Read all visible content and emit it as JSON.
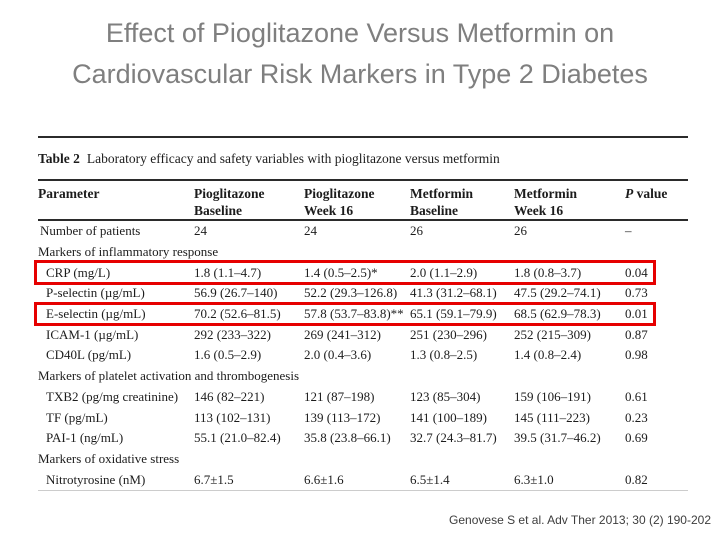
{
  "title": {
    "line1": "Effect of Pioglitazone Versus Metformin on",
    "line2": "Cardiovascular Risk Markers in Type 2 Diabetes"
  },
  "colors": {
    "title_text": "#7f7f7f",
    "highlight_box": "#e60000",
    "table_text": "#1c1c1c"
  },
  "table": {
    "caption_label": "Table 2",
    "caption_text": "Laboratory efficacy and safety variables with pioglitazone versus metformin",
    "header": [
      {
        "line1": "Parameter",
        "line2": ""
      },
      {
        "line1": "Pioglitazone",
        "line2": "Baseline"
      },
      {
        "line1": "Pioglitazone",
        "line2": "Week 16"
      },
      {
        "line1": "Metformin",
        "line2": "Baseline"
      },
      {
        "line1": "Metformin",
        "line2": "Week 16"
      },
      {
        "line1": "P value",
        "line2": ""
      }
    ],
    "rows": [
      {
        "type": "data",
        "indent": false,
        "highlight": false,
        "cells": [
          "Number of patients",
          "24",
          "24",
          "26",
          "26",
          "–"
        ]
      },
      {
        "type": "section",
        "label": "Markers of inflammatory response"
      },
      {
        "type": "data",
        "indent": true,
        "highlight": true,
        "cells": [
          "CRP (mg/L)",
          "1.8 (1.1–4.7)",
          "1.4 (0.5–2.5)*",
          "2.0 (1.1–2.9)",
          "1.8 (0.8–3.7)",
          "0.04"
        ]
      },
      {
        "type": "data",
        "indent": true,
        "highlight": false,
        "cells": [
          "P-selectin (µg/mL)",
          "56.9 (26.7–140)",
          "52.2 (29.3–126.8)",
          "41.3 (31.2–68.1)",
          "47.5 (29.2–74.1)",
          "0.73"
        ]
      },
      {
        "type": "data",
        "indent": true,
        "highlight": true,
        "cells": [
          "E-selectin (µg/mL)",
          "70.2 (52.6–81.5)",
          "57.8 (53.7–83.8)**",
          "65.1 (59.1–79.9)",
          "68.5 (62.9–78.3)",
          "0.01"
        ]
      },
      {
        "type": "data",
        "indent": true,
        "highlight": false,
        "cells": [
          "ICAM-1 (µg/mL)",
          "292 (233–322)",
          "269 (241–312)",
          "251 (230–296)",
          "252 (215–309)",
          "0.87"
        ]
      },
      {
        "type": "data",
        "indent": true,
        "highlight": false,
        "cells": [
          "CD40L (pg/mL)",
          "1.6 (0.5–2.9)",
          "2.0 (0.4–3.6)",
          "1.3 (0.8–2.5)",
          "1.4 (0.8–2.4)",
          "0.98"
        ]
      },
      {
        "type": "section",
        "label": "Markers of platelet activation and thrombogenesis"
      },
      {
        "type": "data",
        "indent": true,
        "highlight": false,
        "cells": [
          "TXB2 (pg/mg creatinine)",
          "146 (82–221)",
          "121 (87–198)",
          "123 (85–304)",
          "159 (106–191)",
          "0.61"
        ]
      },
      {
        "type": "data",
        "indent": true,
        "highlight": false,
        "cells": [
          "TF (pg/mL)",
          "113 (102–131)",
          "139 (113–172)",
          "141 (100–189)",
          "145 (111–223)",
          "0.23"
        ]
      },
      {
        "type": "data",
        "indent": true,
        "highlight": false,
        "cells": [
          "PAI-1 (ng/mL)",
          "55.1 (21.0–82.4)",
          "35.8 (23.8–66.1)",
          "32.7 (24.3–81.7)",
          "39.5 (31.7–46.2)",
          "0.69"
        ]
      },
      {
        "type": "section",
        "label": "Markers of oxidative stress"
      },
      {
        "type": "data",
        "indent": true,
        "highlight": false,
        "cells": [
          "Nitrotyrosine (nM)",
          "6.7±1.5",
          "6.6±1.6",
          "6.5±1.4",
          "6.3±1.0",
          "0.82"
        ]
      }
    ]
  },
  "citation": "Genovese S et al. Adv Ther 2013; 30 (2) 190-202"
}
